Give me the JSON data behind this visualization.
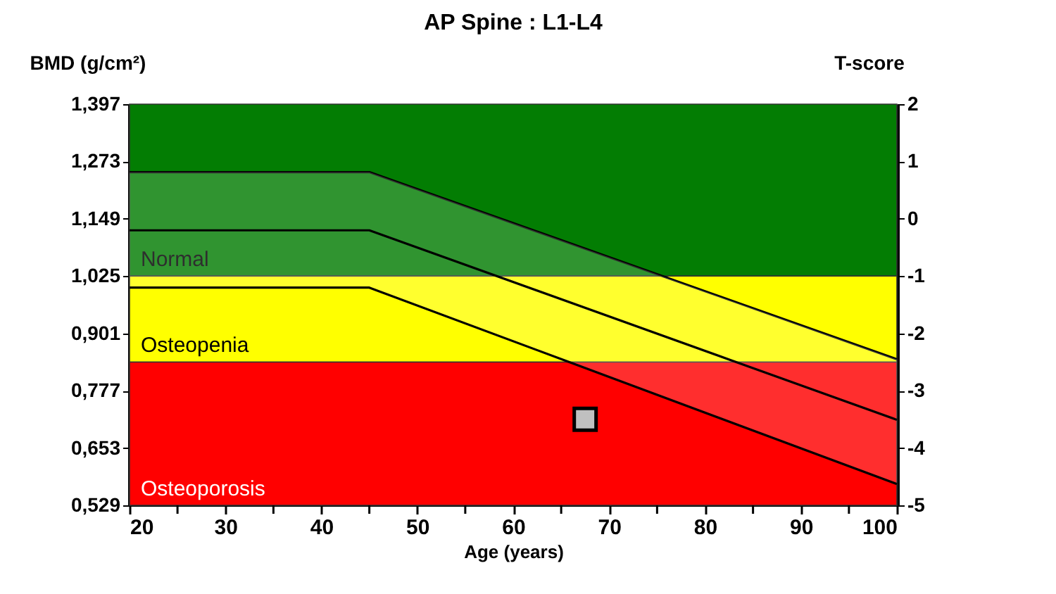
{
  "chart_data": {
    "type": "line",
    "title": "AP Spine : L1-L4",
    "xlabel": "Age (years)",
    "ylabel": "BMD (g/cm²)",
    "y2label": "T-score",
    "xlim": [
      20,
      100
    ],
    "xticks": [
      20,
      {
        "value": 25,
        "label": null
      },
      30,
      {
        "value": 35,
        "label": null
      },
      40,
      {
        "value": 45,
        "label": null
      },
      50,
      {
        "value": 55,
        "label": null
      },
      60,
      {
        "value": 65,
        "label": null
      },
      70,
      {
        "value": 75,
        "label": null
      },
      80,
      {
        "value": 85,
        "label": null
      },
      90,
      {
        "value": 95,
        "label": null
      },
      100
    ],
    "ylim": [
      0.529,
      1.397
    ],
    "yticks": [
      {
        "value": 0.529,
        "label": "0,529"
      },
      {
        "value": 0.653,
        "label": "0,653"
      },
      {
        "value": 0.777,
        "label": "0,777"
      },
      {
        "value": 0.901,
        "label": "0,901"
      },
      {
        "value": 1.025,
        "label": "1,025"
      },
      {
        "value": 1.149,
        "label": "1,149"
      },
      {
        "value": 1.273,
        "label": "1,273"
      },
      {
        "value": 1.397,
        "label": "1,397"
      }
    ],
    "y2lim": [
      -5,
      2
    ],
    "y2ticks": [
      -5,
      -4,
      -3,
      -2,
      -1,
      0,
      1,
      2
    ],
    "bands": [
      {
        "axis": "y",
        "from": 1.025,
        "to": 1.397,
        "label": "Normal",
        "color": "#037d03"
      },
      {
        "axis": "y",
        "from": 0.839,
        "to": 1.025,
        "label": "Osteopenia",
        "color": "#ffff00"
      },
      {
        "axis": "y",
        "from": 0.529,
        "to": 0.839,
        "label": "Osteoporosis",
        "color": "#ff0000"
      }
    ],
    "series": [
      {
        "color": "#000000",
        "x": [
          20,
          45,
          100
        ],
        "values": [
          1.25,
          1.25,
          0.845
        ]
      },
      {
        "color": "#000000",
        "x": [
          20,
          45,
          100
        ],
        "values": [
          1.124,
          1.124,
          0.714
        ],
        "lower": [
          1.0,
          1.0,
          0.575
        ],
        "upper": [
          1.25,
          1.25,
          0.845
        ]
      },
      {
        "color": "#000000",
        "x": [
          20,
          45,
          100
        ],
        "values": [
          1.0,
          1.0,
          0.575
        ]
      },
      {
        "type": "scatter",
        "marker": "square",
        "color": "#c0c0c0",
        "axis": "y2",
        "x": [
          67.5
        ],
        "values": [
          -3.5
        ]
      }
    ]
  }
}
